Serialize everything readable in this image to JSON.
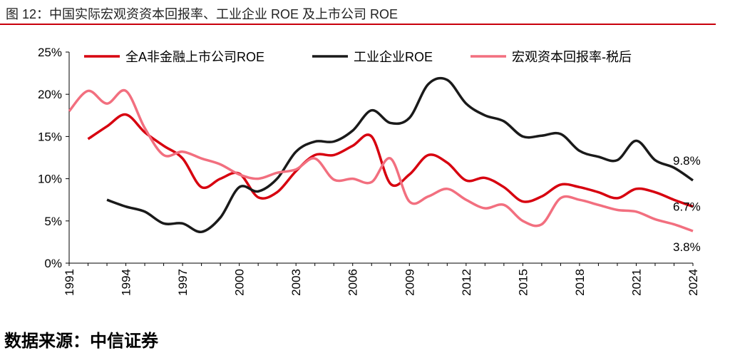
{
  "title": "图 12：中国实际宏观资资本回报率、工业企业 ROE 及上市公司 ROE",
  "source": "数据来源：中信证券",
  "chart_data": {
    "type": "line",
    "title": "图 12：中国实际宏观资资本回报率、工业企业 ROE 及上市公司 ROE",
    "xlabel": "",
    "ylabel": "",
    "xlim": [
      1991,
      2024
    ],
    "ylim": [
      0,
      25
    ],
    "x_ticks": [
      "1991",
      "1994",
      "1997",
      "2000",
      "2003",
      "2006",
      "2009",
      "2012",
      "2015",
      "2018",
      "2021",
      "2024"
    ],
    "y_ticks": [
      "0%",
      "5%",
      "10%",
      "15%",
      "20%",
      "25%"
    ],
    "grid": false,
    "legend_position": "top",
    "series": [
      {
        "name": "全A非金融上市公司ROE",
        "color": "#d7000f",
        "start": 1992,
        "values": [
          14.7,
          16.2,
          17.6,
          15.5,
          13.9,
          12.4,
          9.0,
          10.0,
          10.6,
          7.8,
          8.4,
          10.9,
          12.8,
          12.8,
          13.9,
          15.0,
          9.4,
          10.5,
          12.8,
          11.9,
          9.8,
          10.1,
          9.0,
          7.3,
          7.9,
          9.3,
          9.0,
          8.4,
          7.7,
          8.8,
          8.4,
          7.5,
          6.7
        ],
        "end_label": "6.7%"
      },
      {
        "name": "工业企业ROE",
        "color": "#1a1a1a",
        "start": 1993,
        "values": [
          7.5,
          6.7,
          6.1,
          4.7,
          4.7,
          3.7,
          5.4,
          9.0,
          8.5,
          10.0,
          13.2,
          14.4,
          14.4,
          15.7,
          18.1,
          16.6,
          17.2,
          21.2,
          21.7,
          18.9,
          17.5,
          16.8,
          15.0,
          15.1,
          15.3,
          13.3,
          12.6,
          12.2,
          14.5,
          12.2,
          11.3,
          9.8
        ],
        "end_label": "9.8%"
      },
      {
        "name": "宏观资本回报率-税后",
        "color": "#f26f7f",
        "start": 1991,
        "values": [
          18.0,
          20.4,
          18.9,
          20.4,
          16.0,
          12.8,
          13.2,
          12.4,
          11.7,
          10.5,
          10.0,
          10.7,
          11.1,
          12.4,
          9.9,
          10.0,
          9.6,
          12.4,
          7.3,
          7.9,
          8.8,
          7.5,
          6.5,
          6.9,
          5.0,
          4.6,
          7.7,
          7.5,
          6.9,
          6.3,
          6.1,
          5.2,
          4.6,
          3.8
        ],
        "end_label": "3.8%"
      }
    ]
  }
}
